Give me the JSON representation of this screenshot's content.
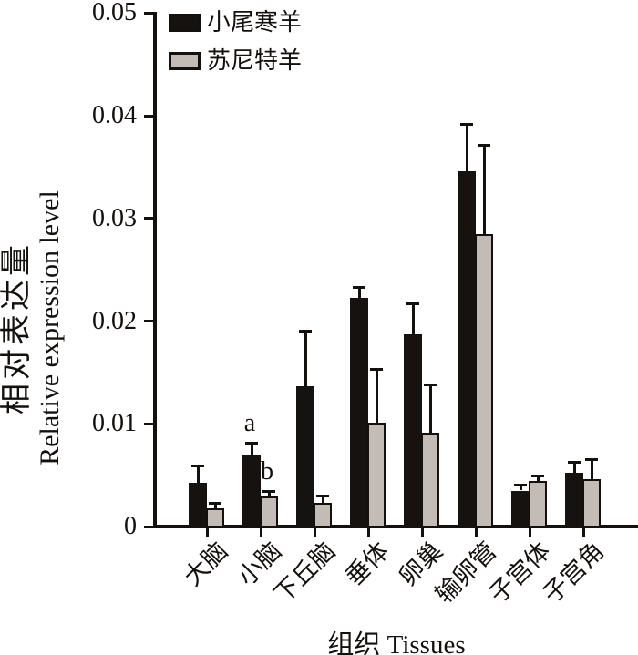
{
  "figure": {
    "background": "#ffffff",
    "axis_color": "#14100e"
  },
  "y_axis": {
    "title_cn": "相对表达量",
    "title_en": "Relative expression level",
    "tick_labels": [
      "0",
      "0.01",
      "0.02",
      "0.03",
      "0.04",
      "0.05"
    ],
    "tick_values": [
      0,
      0.01,
      0.02,
      0.03,
      0.04,
      0.05
    ]
  },
  "x_axis": {
    "title": "组织  Tissues"
  },
  "legend": {
    "items": [
      {
        "label": "小尾寒羊",
        "color": "#161210"
      },
      {
        "label": "苏尼特羊",
        "color": "#c3bbb5"
      }
    ]
  },
  "chart_data": {
    "type": "bar",
    "title": "",
    "xlabel": "组织 Tissues",
    "ylabel": "相对表达量 Relative expression level",
    "ylim": [
      0,
      0.05
    ],
    "grid": false,
    "legend_position": "upper-left-inside",
    "categories": [
      "大脑",
      "小脑",
      "下丘脑",
      "垂体",
      "卵巢",
      "输卵管",
      "子宫体",
      "子宫角"
    ],
    "series": [
      {
        "name": "小尾寒羊",
        "color": "#161210",
        "border_color": "#161210",
        "values": [
          0.0043,
          0.007,
          0.0137,
          0.0223,
          0.0187,
          0.0346,
          0.0035,
          0.0052
        ],
        "errors": [
          0.0016,
          0.0011,
          0.0053,
          0.001,
          0.003,
          0.0046,
          0.0005,
          0.0011
        ]
      },
      {
        "name": "苏尼特羊",
        "color": "#c3bbb5",
        "border_color": "#14100e",
        "values": [
          0.0018,
          0.0029,
          0.0023,
          0.0101,
          0.0091,
          0.0285,
          0.0044,
          0.0046
        ],
        "errors": [
          0.0005,
          0.0005,
          0.0007,
          0.0052,
          0.0047,
          0.0086,
          0.0005,
          0.0019
        ]
      }
    ],
    "annotations": [
      {
        "text": "a",
        "category_index": 1,
        "series_index": 0
      },
      {
        "text": "b",
        "category_index": 1,
        "series_index": 1
      }
    ]
  }
}
